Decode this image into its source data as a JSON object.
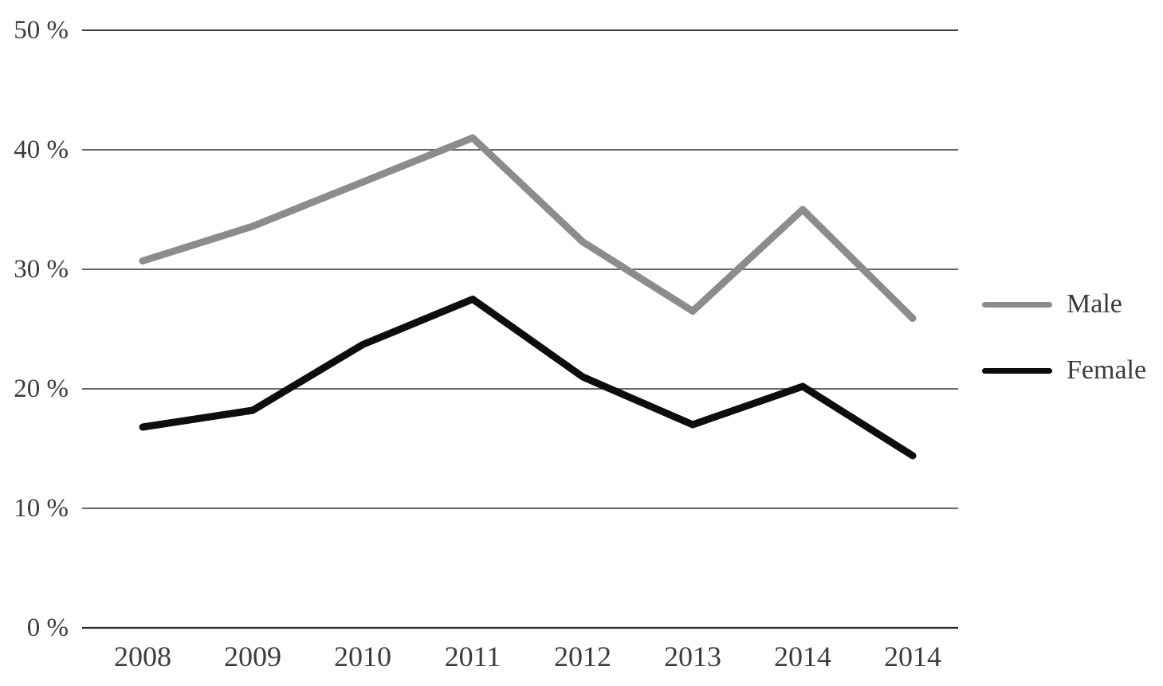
{
  "chart_data": {
    "type": "line",
    "title": "",
    "xlabel": "",
    "ylabel": "",
    "categories": [
      "2008",
      "2009",
      "2010",
      "2011",
      "2012",
      "2013",
      "2014",
      "2014"
    ],
    "series": [
      {
        "name": "Male",
        "color": "#8c8c8c",
        "values": [
          30.7,
          33.6,
          37.3,
          41.0,
          32.3,
          26.5,
          35.0,
          25.9
        ]
      },
      {
        "name": "Female",
        "color": "#0d0d0d",
        "values": [
          16.8,
          18.2,
          23.7,
          27.5,
          21.0,
          17.0,
          20.2,
          14.4
        ]
      }
    ],
    "yticks": [
      {
        "label": "0 %",
        "value": 0
      },
      {
        "label": "10 %",
        "value": 10
      },
      {
        "label": "20 %",
        "value": 20
      },
      {
        "label": "30 %",
        "value": 30
      },
      {
        "label": "40 %",
        "value": 40
      },
      {
        "label": "50 %",
        "value": 50
      }
    ],
    "ylim": [
      0,
      50
    ],
    "grid": "horizontal",
    "legend_position": "right"
  },
  "colors": {
    "male_line": "#8c8c8c",
    "female_line": "#0d0d0d",
    "gridline": "#4f4f4f",
    "top_gridline": "#1f1f1f",
    "bottom_axis": "#2b2b2b",
    "label_text": "#3c3c3c"
  }
}
